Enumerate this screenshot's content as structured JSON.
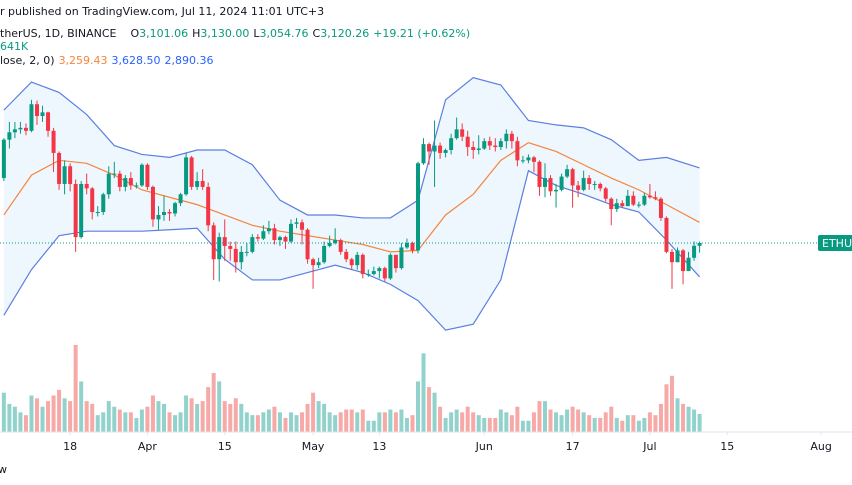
{
  "chart_data": {
    "type": "candlestick",
    "attribution": "r published on TradingView.com, Jul 11, 2024 11:01 UTC+3",
    "symbol": "therUS, 1D, BINANCE",
    "legend": {
      "o": "O",
      "open": "3,101.06",
      "h": "H",
      "high": "3,130.00",
      "l": "L",
      "low": "3,054.76",
      "c": "C",
      "close": "3,120.26",
      "change": "+19.21 (+0.62%)"
    },
    "volume_label": "641K",
    "bb_label": "lose, 2, 0)",
    "price_tag": "ETHUS",
    "logo": "w",
    "up_color": "#089981",
    "down_color": "#f23645",
    "volume_up_color": "rgba(38,166,154,0.5)",
    "volume_down_color": "rgba(239,83,80,0.5)",
    "xlim": [
      -0.7,
      153.6
    ],
    "xticks": [
      {
        "value": 12,
        "label": "18"
      },
      {
        "value": 26,
        "label": "Apr"
      },
      {
        "value": 40,
        "label": "15"
      },
      {
        "value": 56,
        "label": "May"
      },
      {
        "value": 68,
        "label": "13"
      },
      {
        "value": 87,
        "label": "Jun"
      },
      {
        "value": 103,
        "label": "17"
      },
      {
        "value": 117,
        "label": "Jul"
      },
      {
        "value": 131,
        "label": "15"
      },
      {
        "value": 148,
        "label": "Aug"
      }
    ],
    "ylim": [
      1840,
      4766
    ],
    "volume_ylim": [
      0,
      4700
    ],
    "open": [
      3560,
      3820,
      3870,
      3890,
      3900,
      3880,
      4060,
      3980,
      4005,
      3880,
      3730,
      3520,
      3640,
      3520,
      3160,
      3520,
      3490,
      3330,
      3330,
      3450,
      3590,
      3590,
      3500,
      3560,
      3510,
      3510,
      3650,
      3500,
      3280,
      3310,
      3330,
      3320,
      3390,
      3450,
      3700,
      3500,
      3540,
      3500,
      3240,
      3010,
      3160,
      3100,
      3080,
      2990,
      3060,
      3060,
      3160,
      3150,
      3200,
      3220,
      3140,
      3160,
      3130,
      3250,
      3260,
      3210,
      3010,
      2970,
      2990,
      3100,
      3120,
      3140,
      3060,
      3010,
      2970,
      3040,
      2910,
      2910,
      2930,
      2950,
      2880,
      3040,
      2950,
      3090,
      3120,
      3070,
      3660,
      3790,
      3740,
      3780,
      3730,
      3750,
      3830,
      3890,
      3840,
      3770,
      3750,
      3760,
      3810,
      3780,
      3770,
      3810,
      3860,
      3810,
      3680,
      3680,
      3700,
      3670,
      3500,
      3560,
      3470,
      3480,
      3570,
      3620,
      3510,
      3480,
      3560,
      3520,
      3520,
      3490,
      3420,
      3350,
      3390,
      3370,
      3440,
      3380,
      3380,
      3440,
      3430,
      3420,
      3290,
      3060,
      2990,
      3070,
      2930,
      3020,
      3101.06
    ],
    "high": [
      3830,
      3940,
      3940,
      3940,
      3930,
      4090,
      4085,
      4050,
      4010,
      3900,
      3740,
      3680,
      3660,
      3550,
      3540,
      3590,
      3500,
      3370,
      3460,
      3640,
      3670,
      3610,
      3580,
      3600,
      3530,
      3660,
      3660,
      3510,
      3370,
      3440,
      3350,
      3400,
      3460,
      3730,
      3710,
      3600,
      3620,
      3530,
      3260,
      3190,
      3280,
      3130,
      3130,
      3100,
      3120,
      3180,
      3180,
      3240,
      3270,
      3250,
      3170,
      3170,
      3280,
      3290,
      3280,
      3220,
      3020,
      3020,
      3130,
      3170,
      3220,
      3150,
      3080,
      3020,
      3060,
      3050,
      2940,
      2960,
      2960,
      2960,
      3050,
      3040,
      3120,
      3150,
      3130,
      3670,
      3830,
      3800,
      3950,
      3800,
      3760,
      3860,
      3970,
      3930,
      3880,
      3810,
      3850,
      3830,
      3840,
      3830,
      3830,
      3890,
      3880,
      3840,
      3710,
      3720,
      3710,
      3680,
      3660,
      3580,
      3520,
      3590,
      3650,
      3630,
      3540,
      3610,
      3580,
      3540,
      3530,
      3500,
      3430,
      3420,
      3410,
      3480,
      3470,
      3400,
      3460,
      3520,
      3470,
      3430,
      3300,
      3080,
      3090,
      3080,
      3060,
      3130,
      3130
    ],
    "low": [
      3540,
      3760,
      3830,
      3860,
      3850,
      3870,
      3920,
      3940,
      3840,
      3600,
      3480,
      3450,
      3470,
      3060,
      3150,
      3450,
      3280,
      3300,
      3310,
      3420,
      3560,
      3470,
      3470,
      3480,
      3490,
      3500,
      3480,
      3230,
      3210,
      3270,
      3270,
      3300,
      3370,
      3440,
      3480,
      3480,
      3480,
      3200,
      2870,
      2860,
      3000,
      3000,
      2920,
      2940,
      3030,
      3050,
      3130,
      3140,
      3180,
      3110,
      3100,
      3080,
      3120,
      3220,
      3110,
      2980,
      2810,
      2950,
      2980,
      3090,
      3110,
      3040,
      2990,
      2940,
      2940,
      2880,
      2890,
      2900,
      2880,
      2860,
      2870,
      2920,
      2940,
      3080,
      3050,
      3050,
      3650,
      3650,
      3500,
      3690,
      3700,
      3720,
      3820,
      3810,
      3710,
      3690,
      3720,
      3750,
      3750,
      3740,
      3750,
      3760,
      3760,
      3640,
      3660,
      3660,
      3600,
      3440,
      3430,
      3440,
      3360,
      3470,
      3560,
      3360,
      3430,
      3470,
      3480,
      3480,
      3470,
      3400,
      3240,
      3330,
      3360,
      3370,
      3370,
      3360,
      3370,
      3420,
      3410,
      3270,
      3050,
      2810,
      2990,
      2840,
      2930,
      3000,
      3054.76
    ],
    "close": [
      3820,
      3870,
      3890,
      3900,
      3880,
      4060,
      3980,
      4005,
      3880,
      3730,
      3520,
      3640,
      3520,
      3160,
      3520,
      3490,
      3330,
      3330,
      3450,
      3590,
      3590,
      3500,
      3560,
      3510,
      3510,
      3650,
      3500,
      3280,
      3310,
      3330,
      3320,
      3390,
      3450,
      3700,
      3500,
      3540,
      3500,
      3240,
      3010,
      3160,
      3100,
      3080,
      2990,
      3060,
      3060,
      3160,
      3150,
      3200,
      3220,
      3140,
      3160,
      3130,
      3250,
      3260,
      3210,
      3010,
      2970,
      2990,
      3100,
      3120,
      3140,
      3060,
      3010,
      2970,
      3040,
      2910,
      2910,
      2930,
      2950,
      2880,
      3040,
      2950,
      3090,
      3120,
      3070,
      3660,
      3790,
      3740,
      3780,
      3730,
      3750,
      3830,
      3890,
      3840,
      3770,
      3750,
      3760,
      3810,
      3780,
      3770,
      3810,
      3860,
      3810,
      3680,
      3680,
      3700,
      3670,
      3500,
      3560,
      3470,
      3480,
      3570,
      3620,
      3510,
      3480,
      3560,
      3520,
      3520,
      3490,
      3420,
      3350,
      3390,
      3370,
      3440,
      3380,
      3380,
      3440,
      3430,
      3420,
      3290,
      3060,
      2990,
      3070,
      2930,
      3020,
      3101.05,
      3120.26
    ],
    "volume": [
      1400,
      1000,
      900,
      700,
      600,
      1300,
      1200,
      900,
      1100,
      1300,
      1500,
      1200,
      1100,
      3100,
      1800,
      1100,
      1000,
      600,
      700,
      1100,
      900,
      800,
      700,
      700,
      500,
      800,
      900,
      1300,
      1100,
      1000,
      700,
      600,
      700,
      1300,
      1200,
      1000,
      1100,
      1600,
      2100,
      1800,
      1100,
      1000,
      1200,
      1000,
      700,
      600,
      600,
      700,
      800,
      900,
      700,
      500,
      700,
      600,
      700,
      1000,
      1400,
      1100,
      1000,
      700,
      600,
      700,
      800,
      800,
      700,
      800,
      400,
      400,
      700,
      700,
      800,
      700,
      800,
      500,
      600,
      1800,
      2800,
      1600,
      1400,
      900,
      500,
      700,
      800,
      700,
      900,
      700,
      600,
      500,
      500,
      500,
      800,
      700,
      600,
      900,
      400,
      400,
      700,
      1100,
      1100,
      800,
      700,
      600,
      800,
      900,
      800,
      700,
      600,
      500,
      500,
      700,
      900,
      500,
      400,
      600,
      600,
      400,
      500,
      700,
      600,
      1000,
      1700,
      2000,
      1200,
      1000,
      900,
      800,
      641
    ],
    "bollinger": {
      "x": [
        0,
        5,
        10,
        15,
        20,
        25,
        30,
        35,
        40,
        45,
        50,
        55,
        60,
        65,
        70,
        75,
        80,
        85,
        90,
        95,
        100,
        105,
        110,
        115,
        120,
        126
      ],
      "basis": [
        3310,
        3580,
        3680,
        3660,
        3580,
        3480,
        3430,
        3380,
        3310,
        3240,
        3200,
        3170,
        3140,
        3110,
        3060,
        3070,
        3310,
        3450,
        3680,
        3800,
        3740,
        3650,
        3560,
        3480,
        3380,
        3259.43
      ],
      "upper": [
        4020,
        4210,
        4140,
        3990,
        3780,
        3720,
        3700,
        3750,
        3750,
        3650,
        3410,
        3310,
        3310,
        3290,
        3290,
        3410,
        4090,
        4240,
        4190,
        3950,
        3920,
        3900,
        3820,
        3680,
        3700,
        3628.5
      ],
      "lower": [
        2630,
        2940,
        3170,
        3200,
        3200,
        3200,
        3210,
        3220,
        3010,
        2870,
        2870,
        2920,
        2970,
        2920,
        2840,
        2730,
        2530,
        2570,
        2870,
        3610,
        3510,
        3450,
        3380,
        3330,
        3140,
        2890.36
      ],
      "basis_label": "3,259.43",
      "upper_label": "3,628.50",
      "lower_label": "2,890.36",
      "basis_color": "#f7853c",
      "band_color": "#5b7fe0",
      "fill_color": "rgba(33,150,243,0.08)"
    }
  }
}
